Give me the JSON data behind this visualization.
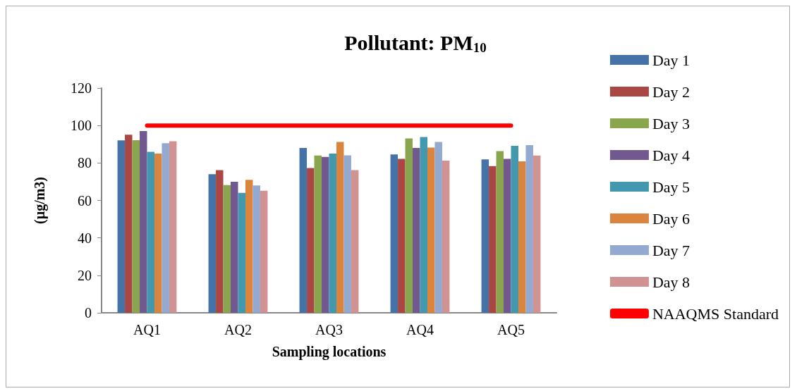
{
  "chart_data": {
    "type": "bar",
    "title": "Pollutant: PM$_{10}$",
    "xlabel": "Sampling locations",
    "ylabel": "(µg/m3)",
    "categories": [
      "AQ1",
      "AQ2",
      "AQ3",
      "AQ4",
      "AQ5"
    ],
    "series": [
      {
        "name": "Day 1",
        "color": "#4572a7",
        "values": [
          92.1,
          74.0,
          88.0,
          84.5,
          81.9
        ]
      },
      {
        "name": "Day 2",
        "color": "#aa4643",
        "values": [
          95.1,
          76.2,
          77.3,
          82.2,
          78.3
        ]
      },
      {
        "name": "Day 3",
        "color": "#89a54e",
        "values": [
          92.2,
          68.2,
          84.0,
          93.1,
          86.3
        ]
      },
      {
        "name": "Day 4",
        "color": "#71588f",
        "values": [
          97.1,
          70.0,
          83.2,
          88.0,
          82.2
        ]
      },
      {
        "name": "Day 5",
        "color": "#4198af",
        "values": [
          86.0,
          64.0,
          85.0,
          93.9,
          89.2
        ]
      },
      {
        "name": "Day 6",
        "color": "#db843d",
        "values": [
          85.0,
          71.0,
          91.2,
          88.2,
          80.9
        ]
      },
      {
        "name": "Day 7",
        "color": "#93a9cf",
        "values": [
          90.6,
          68.0,
          84.1,
          91.2,
          89.5
        ]
      },
      {
        "name": "Day 8",
        "color": "#d19392",
        "values": [
          91.6,
          65.2,
          76.2,
          81.3,
          84.0
        ]
      },
      {
        "name": "NAAQMS Standard",
        "type": "line",
        "color": "#ff0000",
        "values": [
          100,
          100,
          100,
          100,
          100
        ]
      }
    ],
    "ylim": [
      0,
      120
    ],
    "yticks": [
      0,
      20,
      40,
      60,
      80,
      100,
      120
    ],
    "grid": false,
    "legend": "right",
    "marker": "none"
  }
}
